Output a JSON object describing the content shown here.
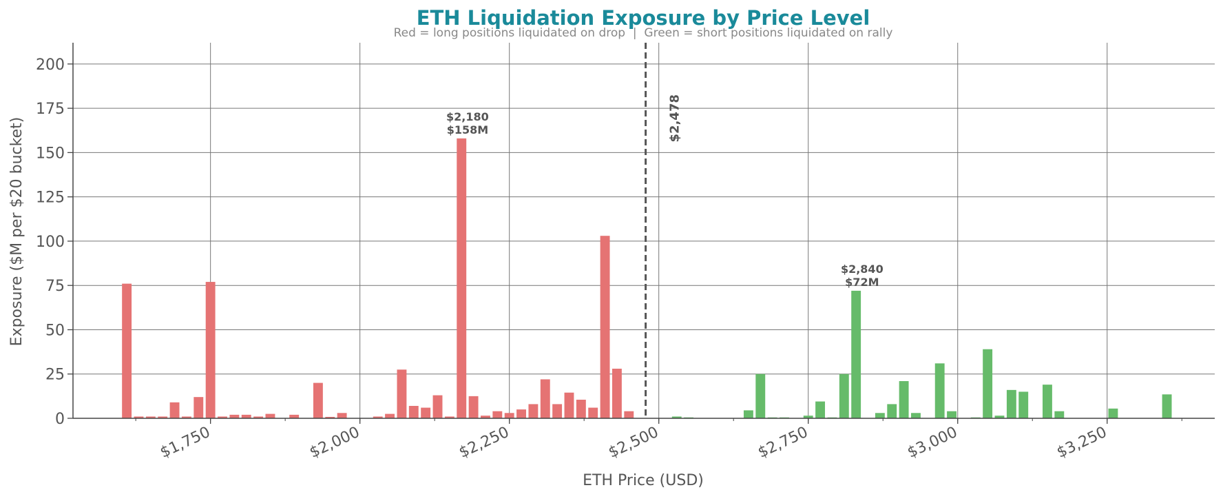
{
  "chart_data": {
    "type": "bar",
    "title": "ETH Liquidation Exposure by Price Level",
    "subtitle": "Red = long positions liquidated on drop  |  Green = short positions liquidated on rally",
    "xlabel": "ETH Price (USD)",
    "ylabel": "Exposure ($M per $20 bucket)",
    "xlim": [
      1520,
      3430
    ],
    "ylim": [
      0,
      212
    ],
    "x_ticks": [
      1750,
      2000,
      2250,
      2500,
      2750,
      3000,
      3250
    ],
    "x_tick_labels": [
      "$1,750",
      "$2,000",
      "$2,250",
      "$2,500",
      "$2,750",
      "$3,000",
      "$3,250"
    ],
    "y_ticks": [
      0,
      25,
      50,
      75,
      100,
      125,
      150,
      175,
      200
    ],
    "y_tick_labels": [
      "0",
      "25",
      "50",
      "75",
      "100",
      "125",
      "150",
      "175",
      "200"
    ],
    "grid": true,
    "bucket_width": 20,
    "current_price": 2478,
    "current_price_label": "$2,478",
    "colors": {
      "long": "#e57373",
      "short": "#66bb6a",
      "title": "#1a8a9a",
      "text": "#555555",
      "subtitle": "#888888",
      "grid": "#777777",
      "current_line": "#555555"
    },
    "series": [
      {
        "name": "Red = long positions liquidated on drop",
        "color": "#e57373",
        "points": [
          [
            1610,
            76
          ],
          [
            1630,
            1
          ],
          [
            1650,
            1
          ],
          [
            1670,
            1
          ],
          [
            1690,
            9
          ],
          [
            1710,
            1
          ],
          [
            1730,
            12
          ],
          [
            1750,
            77
          ],
          [
            1770,
            1
          ],
          [
            1790,
            2
          ],
          [
            1810,
            2
          ],
          [
            1830,
            1
          ],
          [
            1850,
            2.5
          ],
          [
            1890,
            2
          ],
          [
            1930,
            20
          ],
          [
            1950,
            0.8
          ],
          [
            1970,
            3
          ],
          [
            2030,
            1
          ],
          [
            2050,
            2.5
          ],
          [
            2070,
            27.5
          ],
          [
            2090,
            7
          ],
          [
            2110,
            6
          ],
          [
            2130,
            13
          ],
          [
            2150,
            1
          ],
          [
            2170,
            158
          ],
          [
            2190,
            12.5
          ],
          [
            2210,
            1.5
          ],
          [
            2230,
            4
          ],
          [
            2250,
            3
          ],
          [
            2270,
            5
          ],
          [
            2290,
            8
          ],
          [
            2310,
            22
          ],
          [
            2330,
            8
          ],
          [
            2350,
            14.5
          ],
          [
            2370,
            10.5
          ],
          [
            2390,
            6
          ],
          [
            2410,
            103
          ],
          [
            2430,
            28
          ],
          [
            2450,
            4
          ]
        ]
      },
      {
        "name": "Green = short positions liquidated on rally",
        "color": "#66bb6a",
        "points": [
          [
            2530,
            1
          ],
          [
            2550,
            0.5
          ],
          [
            2650,
            4.5
          ],
          [
            2670,
            25
          ],
          [
            2690,
            0.5
          ],
          [
            2710,
            0.5
          ],
          [
            2750,
            1.5
          ],
          [
            2770,
            9.5
          ],
          [
            2790,
            0.5
          ],
          [
            2810,
            25
          ],
          [
            2830,
            72
          ],
          [
            2870,
            3
          ],
          [
            2890,
            8
          ],
          [
            2910,
            21
          ],
          [
            2930,
            3
          ],
          [
            2970,
            31
          ],
          [
            2990,
            4
          ],
          [
            3030,
            0.5
          ],
          [
            3050,
            39
          ],
          [
            3070,
            1.5
          ],
          [
            3090,
            16
          ],
          [
            3110,
            15
          ],
          [
            3150,
            19
          ],
          [
            3170,
            4
          ],
          [
            3260,
            5.5
          ],
          [
            3350,
            13.5
          ]
        ]
      }
    ],
    "annotations": [
      {
        "x": 2180,
        "y": 158,
        "line1": "$2,180",
        "line2": "$158M"
      },
      {
        "x": 2840,
        "y": 72,
        "line1": "$2,840",
        "line2": "$72M"
      }
    ]
  }
}
